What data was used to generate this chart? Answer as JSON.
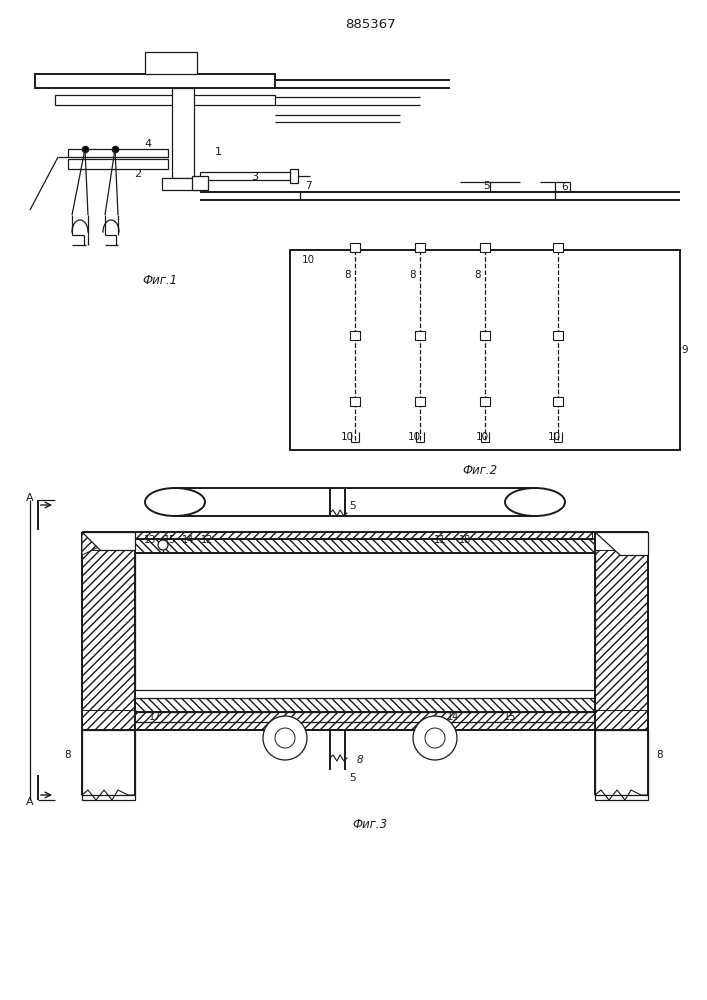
{
  "title": "885367",
  "background_color": "#ffffff",
  "line_color": "#1a1a1a",
  "fig1_label": "Фиг.1",
  "fig2_label": "Фиг.2",
  "fig3_label": "Фиг.3"
}
